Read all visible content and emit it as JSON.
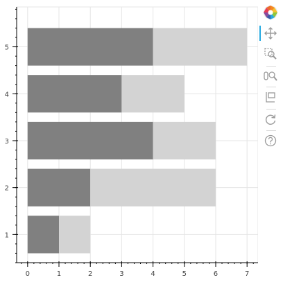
{
  "chart_data": {
    "type": "bar",
    "orientation": "horizontal",
    "stacked": true,
    "categories": [
      "1",
      "2",
      "3",
      "4",
      "5"
    ],
    "series": [
      {
        "values": [
          1,
          2,
          4,
          3,
          4
        ],
        "color": "#808080"
      },
      {
        "values": [
          1,
          4,
          2,
          2,
          3
        ],
        "color": "#d3d3d3"
      }
    ],
    "xlim": [
      -0.35,
      7.35
    ],
    "ylim": [
      0.4,
      5.85
    ],
    "x_ticks": [
      "0",
      "1",
      "2",
      "3",
      "4",
      "5",
      "6",
      "7"
    ],
    "y_ticks": [
      "1",
      "2",
      "3",
      "4",
      "5"
    ],
    "grid": true
  },
  "toolbar": {
    "tools": [
      {
        "name": "bokeh-logo-icon",
        "interactable": false,
        "active": false
      },
      {
        "name": "pan-tool-icon",
        "interactable": true,
        "active": true
      },
      {
        "name": "box-zoom-tool-icon",
        "interactable": true,
        "active": false
      },
      {
        "name": "wheel-zoom-tool-icon",
        "interactable": true,
        "active": false
      },
      {
        "name": "save-tool-icon",
        "interactable": true,
        "active": false
      },
      {
        "name": "reset-tool-icon",
        "interactable": true,
        "active": false
      },
      {
        "name": "help-tool-icon",
        "interactable": true,
        "active": false
      }
    ]
  }
}
